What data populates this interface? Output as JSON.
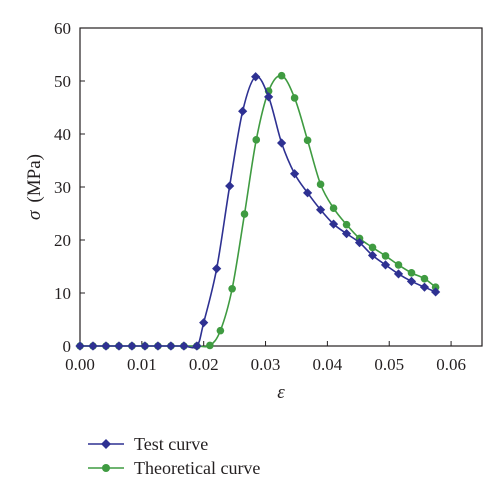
{
  "chart_data": {
    "type": "line",
    "xlabel": "ε",
    "ylabel_symbol": "σ",
    "ylabel_unit": "(MPa)",
    "xlim": [
      0.0,
      0.065
    ],
    "ylim": [
      0,
      60
    ],
    "xticks": [
      0.0,
      0.01,
      0.02,
      0.03,
      0.04,
      0.05,
      0.06
    ],
    "xtick_labels": [
      "0.00",
      "0.01",
      "0.02",
      "0.03",
      "0.04",
      "0.05",
      "0.06"
    ],
    "yticks": [
      0,
      10,
      20,
      30,
      40,
      50,
      60
    ],
    "ytick_labels": [
      "0",
      "10",
      "20",
      "30",
      "40",
      "50",
      "60"
    ],
    "grid": false,
    "legend_position": "bottom-left, below plot",
    "series": [
      {
        "name": "Test curve",
        "color": "#2e3192",
        "marker": "diamond",
        "x": [
          0.0,
          0.0021,
          0.0042,
          0.0063,
          0.0084,
          0.0105,
          0.0126,
          0.0147,
          0.0168,
          0.0189,
          0.02,
          0.0221,
          0.0242,
          0.0263,
          0.0284,
          0.0305,
          0.0326,
          0.0347,
          0.0368,
          0.0389,
          0.041,
          0.0431,
          0.0452,
          0.0473,
          0.0494,
          0.0515,
          0.0536,
          0.0557,
          0.0575
        ],
        "y": [
          0.0,
          0.0,
          0.0,
          0.0,
          0.0,
          0.0,
          0.0,
          0.0,
          0.0,
          0.0,
          4.4,
          14.6,
          30.2,
          44.3,
          50.8,
          47.0,
          38.3,
          32.5,
          28.9,
          25.7,
          23.0,
          21.2,
          19.5,
          17.1,
          15.3,
          13.6,
          12.2,
          11.1,
          10.2
        ]
      },
      {
        "name": "Theoretical curve",
        "color": "#3f9b41",
        "marker": "circle",
        "x": [
          0.0,
          0.0021,
          0.0042,
          0.0063,
          0.0084,
          0.0105,
          0.0126,
          0.0147,
          0.0168,
          0.0189,
          0.021,
          0.0227,
          0.0246,
          0.0266,
          0.0285,
          0.0305,
          0.0326,
          0.0347,
          0.0368,
          0.0389,
          0.041,
          0.0431,
          0.0452,
          0.0473,
          0.0494,
          0.0515,
          0.0536,
          0.0557,
          0.0575
        ],
        "y": [
          0.0,
          0.0,
          0.0,
          0.0,
          0.0,
          0.0,
          0.0,
          0.0,
          0.0,
          0.0,
          0.1,
          2.9,
          10.8,
          24.9,
          38.9,
          48.1,
          51.0,
          46.8,
          38.8,
          30.5,
          26.0,
          22.9,
          20.3,
          18.6,
          17.0,
          15.3,
          13.8,
          12.7,
          11.1
        ]
      }
    ]
  }
}
